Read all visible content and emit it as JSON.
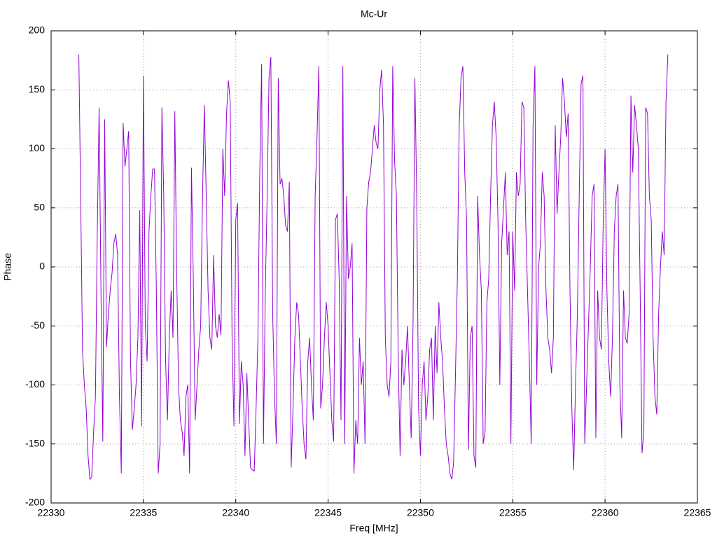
{
  "chart_data": {
    "type": "line",
    "title": "Mc-Ur",
    "x_label": "Freq [MHz]",
    "y_label": "Phase",
    "xlim": [
      22330,
      22365
    ],
    "xticks": [
      22330,
      22335,
      22340,
      22345,
      22350,
      22355,
      22360,
      22365
    ],
    "ylim": [
      -200,
      200
    ],
    "yticks": [
      -200,
      -150,
      -100,
      -50,
      0,
      50,
      100,
      150,
      200
    ],
    "grid": true,
    "x": [
      22331.5,
      22331.6,
      22331.7,
      22331.8,
      22331.9,
      22332.0,
      22332.1,
      22332.2,
      22332.3,
      22332.4,
      22332.5,
      22332.6,
      22332.7,
      22332.8,
      22332.9,
      22333.0,
      22333.1,
      22333.2,
      22333.3,
      22333.4,
      22333.5,
      22333.6,
      22333.7,
      22333.8,
      22333.9,
      22334.0,
      22334.1,
      22334.2,
      22334.3,
      22334.4,
      22334.5,
      22334.6,
      22334.7,
      22334.8,
      22334.9,
      22335.0,
      22335.1,
      22335.2,
      22335.3,
      22335.4,
      22335.5,
      22335.6,
      22335.7,
      22335.8,
      22335.9,
      22336.0,
      22336.1,
      22336.2,
      22336.3,
      22336.4,
      22336.5,
      22336.6,
      22336.7,
      22336.8,
      22336.9,
      22337.0,
      22337.1,
      22337.2,
      22337.3,
      22337.4,
      22337.5,
      22337.6,
      22337.7,
      22337.8,
      22337.9,
      22338.0,
      22338.1,
      22338.2,
      22338.3,
      22338.4,
      22338.5,
      22338.6,
      22338.7,
      22338.8,
      22338.9,
      22339.0,
      22339.1,
      22339.2,
      22339.3,
      22339.4,
      22339.5,
      22339.6,
      22339.7,
      22339.8,
      22339.9,
      22340.0,
      22340.1,
      22340.2,
      22340.3,
      22340.4,
      22340.5,
      22340.6,
      22340.7,
      22340.8,
      22340.9,
      22341.0,
      22341.1,
      22341.2,
      22341.3,
      22341.4,
      22341.5,
      22341.6,
      22341.7,
      22341.8,
      22341.9,
      22342.0,
      22342.1,
      22342.2,
      22342.3,
      22342.4,
      22342.5,
      22342.6,
      22342.7,
      22342.8,
      22342.9,
      22343.0,
      22343.1,
      22343.2,
      22343.3,
      22343.4,
      22343.5,
      22343.6,
      22343.7,
      22343.8,
      22343.9,
      22344.0,
      22344.1,
      22344.2,
      22344.3,
      22344.4,
      22344.5,
      22344.6,
      22344.7,
      22344.8,
      22344.9,
      22345.0,
      22345.1,
      22345.2,
      22345.3,
      22345.4,
      22345.5,
      22345.6,
      22345.7,
      22345.8,
      22345.9,
      22346.0,
      22346.1,
      22346.2,
      22346.3,
      22346.4,
      22346.5,
      22346.6,
      22346.7,
      22346.8,
      22346.9,
      22347.0,
      22347.1,
      22347.2,
      22347.3,
      22347.4,
      22347.5,
      22347.6,
      22347.7,
      22347.8,
      22347.9,
      22348.0,
      22348.1,
      22348.2,
      22348.3,
      22348.4,
      22348.5,
      22348.6,
      22348.7,
      22348.8,
      22348.9,
      22349.0,
      22349.1,
      22349.2,
      22349.3,
      22349.4,
      22349.5,
      22349.6,
      22349.7,
      22349.8,
      22349.9,
      22350.0,
      22350.1,
      22350.2,
      22350.3,
      22350.4,
      22350.5,
      22350.6,
      22350.7,
      22350.8,
      22350.9,
      22351.0,
      22351.1,
      22351.2,
      22351.3,
      22351.4,
      22351.5,
      22351.6,
      22351.7,
      22351.8,
      22351.9,
      22352.0,
      22352.1,
      22352.2,
      22352.3,
      22352.4,
      22352.5,
      22352.6,
      22352.7,
      22352.8,
      22352.9,
      22353.0,
      22353.1,
      22353.2,
      22353.3,
      22353.4,
      22353.5,
      22353.6,
      22353.7,
      22353.8,
      22353.9,
      22354.0,
      22354.1,
      22354.2,
      22354.3,
      22354.4,
      22354.5,
      22354.6,
      22354.7,
      22354.8,
      22354.9,
      22355.0,
      22355.1,
      22355.2,
      22355.3,
      22355.4,
      22355.5,
      22355.6,
      22355.7,
      22355.8,
      22355.9,
      22356.0,
      22356.1,
      22356.2,
      22356.3,
      22356.4,
      22356.5,
      22356.6,
      22356.7,
      22356.8,
      22356.9,
      22357.0,
      22357.1,
      22357.2,
      22357.3,
      22357.4,
      22357.5,
      22357.6,
      22357.7,
      22357.8,
      22357.9,
      22358.0,
      22358.1,
      22358.2,
      22358.3,
      22358.4,
      22358.5,
      22358.6,
      22358.7,
      22358.8,
      22358.9,
      22359.0,
      22359.1,
      22359.2,
      22359.3,
      22359.4,
      22359.5,
      22359.6,
      22359.7,
      22359.8,
      22359.9,
      22360.0,
      22360.1,
      22360.2,
      22360.3,
      22360.4,
      22360.5,
      22360.6,
      22360.7,
      22360.8,
      22360.9,
      22361.0,
      22361.1,
      22361.2,
      22361.3,
      22361.4,
      22361.5,
      22361.6,
      22361.7,
      22361.8,
      22361.9,
      22362.0,
      22362.1,
      22362.2,
      22362.3,
      22362.4,
      22362.5,
      22362.6,
      22362.7,
      22362.8,
      22362.9,
      22363.0,
      22363.1,
      22363.2,
      22363.3,
      22363.4
    ],
    "series": [
      {
        "color": "#9400d3",
        "values": [
          180,
          60,
          -70,
          -100,
          -120,
          -160,
          -180,
          -178,
          -140,
          -110,
          30,
          135,
          -20,
          -148,
          125,
          -68,
          -40,
          -20,
          -5,
          20,
          28,
          10,
          -110,
          -175,
          122,
          85,
          100,
          115,
          -80,
          -138,
          -120,
          -100,
          -60,
          48,
          -135,
          162,
          -50,
          -80,
          30,
          60,
          83,
          83,
          -20,
          -175,
          -150,
          135,
          60,
          -80,
          -130,
          -60,
          -20,
          -60,
          132,
          -5,
          -100,
          -130,
          -140,
          -160,
          -110,
          -100,
          -175,
          84,
          -10,
          -130,
          -100,
          -70,
          -50,
          60,
          137,
          60,
          -20,
          -60,
          -70,
          10,
          -50,
          -60,
          -40,
          -58,
          100,
          60,
          130,
          158,
          140,
          -60,
          -135,
          40,
          54,
          -133,
          -80,
          -100,
          -160,
          -90,
          -130,
          -170,
          -172,
          -173,
          -120,
          -60,
          80,
          172,
          -150,
          -20,
          60,
          160,
          178,
          -40,
          -110,
          -150,
          160,
          70,
          75,
          60,
          35,
          30,
          72,
          -170,
          -120,
          -60,
          -30,
          -40,
          -80,
          -120,
          -150,
          -163,
          -80,
          -60,
          -100,
          -130,
          60,
          110,
          170,
          -120,
          -100,
          -60,
          -30,
          -50,
          -90,
          -130,
          -148,
          40,
          45,
          -10,
          -130,
          170,
          -150,
          60,
          -10,
          0,
          20,
          -175,
          -130,
          -150,
          -60,
          -100,
          -80,
          -150,
          50,
          72,
          80,
          100,
          120,
          105,
          100,
          150,
          167,
          120,
          -60,
          -100,
          -110,
          -80,
          170,
          90,
          60,
          -80,
          -160,
          -70,
          -100,
          -80,
          -50,
          -100,
          -145,
          -50,
          160,
          60,
          -120,
          -160,
          -100,
          -80,
          -130,
          -110,
          -70,
          -60,
          -130,
          -50,
          -90,
          -30,
          -60,
          -80,
          -120,
          -150,
          -160,
          -175,
          -180,
          -165,
          -90,
          -10,
          120,
          160,
          170,
          80,
          40,
          -155,
          -60,
          -50,
          -160,
          -170,
          60,
          10,
          -20,
          -150,
          -140,
          -30,
          -10,
          60,
          120,
          140,
          110,
          40,
          -100,
          20,
          50,
          80,
          10,
          30,
          -150,
          30,
          -20,
          80,
          60,
          70,
          140,
          135,
          40,
          -20,
          -80,
          -150,
          120,
          170,
          -100,
          0,
          20,
          80,
          60,
          -20,
          -60,
          -70,
          -90,
          -60,
          120,
          45,
          80,
          110,
          160,
          140,
          110,
          130,
          -20,
          -120,
          -172,
          -100,
          -40,
          60,
          155,
          162,
          -150,
          -100,
          -50,
          0,
          60,
          70,
          -145,
          -20,
          -60,
          -70,
          40,
          100,
          -20,
          -80,
          -110,
          -60,
          30,
          60,
          70,
          -100,
          -145,
          -20,
          -60,
          -65,
          -40,
          145,
          80,
          137,
          120,
          100,
          -20,
          -158,
          -140,
          135,
          130,
          60,
          40,
          -60,
          -110,
          -125,
          -40,
          0,
          30,
          10,
          140,
          180
        ]
      }
    ]
  }
}
